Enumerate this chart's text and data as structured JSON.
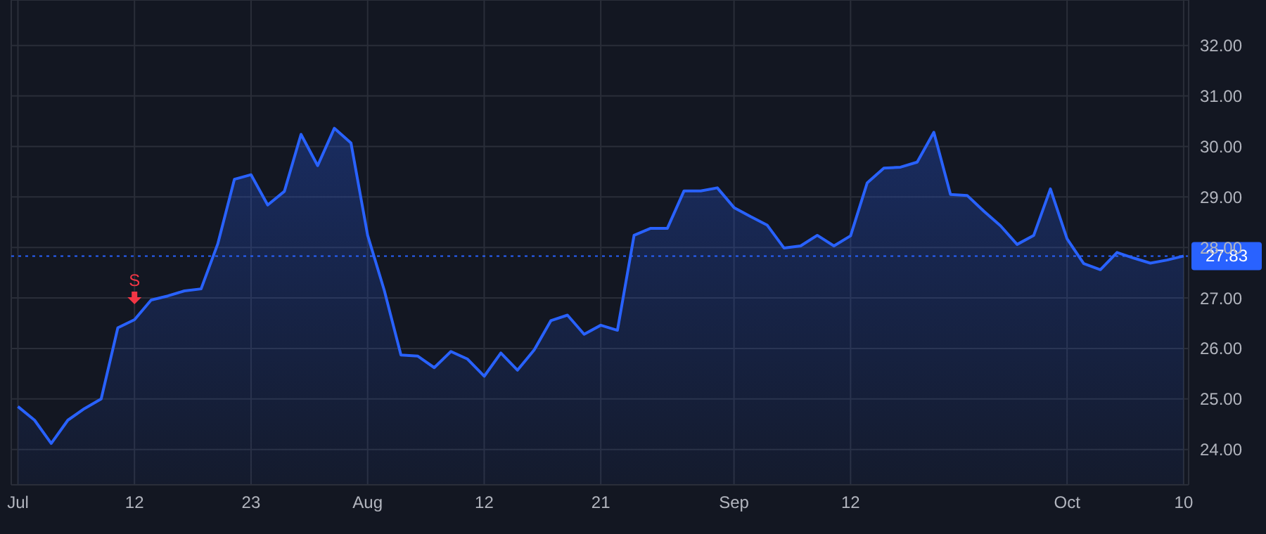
{
  "chart_data": {
    "type": "area",
    "categories": [
      "Jul",
      null,
      null,
      null,
      null,
      null,
      null,
      "12",
      null,
      null,
      null,
      null,
      null,
      null,
      "23",
      null,
      null,
      null,
      null,
      null,
      null,
      "Aug",
      null,
      null,
      null,
      null,
      null,
      null,
      "12",
      null,
      null,
      null,
      null,
      null,
      null,
      "21",
      null,
      null,
      null,
      null,
      null,
      null,
      null,
      "Sep",
      null,
      null,
      null,
      null,
      null,
      null,
      "12",
      null,
      null,
      null,
      null,
      null,
      null,
      null,
      null,
      null,
      null,
      null,
      null,
      "Oct",
      null,
      null,
      null,
      null,
      null,
      null,
      "10"
    ],
    "series": [
      {
        "color": "#2962ff",
        "values": [
          24.85,
          24.58,
          24.12,
          24.58,
          24.81,
          25.0,
          26.41,
          26.57,
          26.96,
          27.04,
          27.14,
          27.18,
          28.07,
          29.35,
          29.44,
          28.84,
          29.11,
          30.24,
          29.62,
          30.36,
          30.07,
          28.24,
          27.15,
          25.87,
          25.85,
          25.62,
          25.94,
          25.79,
          25.45,
          25.91,
          25.57,
          25.97,
          26.55,
          26.66,
          26.28,
          26.46,
          26.36,
          28.24,
          28.38,
          28.38,
          29.12,
          29.12,
          29.18,
          28.79,
          28.61,
          28.44,
          27.99,
          28.03,
          28.24,
          28.03,
          28.23,
          29.28,
          29.57,
          29.59,
          29.69,
          30.28,
          29.05,
          29.03,
          28.72,
          28.43,
          28.06,
          28.24,
          29.16,
          28.17,
          27.68,
          27.56,
          27.9,
          27.79,
          27.69,
          27.75,
          27.83
        ]
      }
    ],
    "ylim": [
      23.3,
      32.9
    ],
    "yticks": [
      {
        "value": 24,
        "label": "24.00"
      },
      {
        "value": 25,
        "label": "25.00"
      },
      {
        "value": 26,
        "label": "26.00"
      },
      {
        "value": 27,
        "label": "27.00"
      },
      {
        "value": 28,
        "label": "28.00"
      },
      {
        "value": 29,
        "label": "29.00"
      },
      {
        "value": 30,
        "label": "30.00"
      },
      {
        "value": 31,
        "label": "31.00"
      },
      {
        "value": 32,
        "label": "32.00"
      }
    ],
    "ref_lines": [
      {
        "axis": "y",
        "value": 27.83,
        "label": "27.83",
        "color": "#2962ff",
        "line_style": "dotted"
      }
    ],
    "annotations": [
      {
        "text": "S",
        "x": "12",
        "y": 26.57
      }
    ],
    "grid": true
  }
}
